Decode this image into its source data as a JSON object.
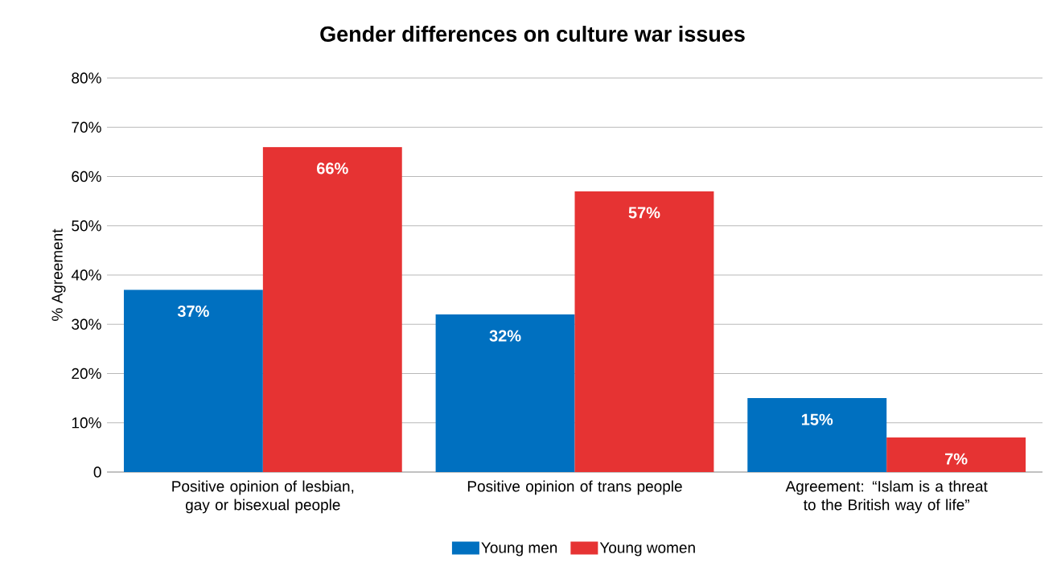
{
  "chart_data": {
    "type": "bar",
    "title": "Gender differences on culture war issues",
    "ylabel": "% Agreement",
    "categories": [
      "Positive opinion of lesbian, gay or bisexual people",
      "Positive opinion of trans people",
      "Agreement: “Islam is a threat to the British way of life”"
    ],
    "series": [
      {
        "name": "Young men",
        "color": "#0070c0",
        "values": [
          37,
          32,
          15
        ],
        "value_labels": [
          "37%",
          "32%",
          "15%"
        ]
      },
      {
        "name": "Young women",
        "color": "#e63333",
        "values": [
          66,
          57,
          7
        ],
        "value_labels": [
          "66%",
          "57%",
          "7%"
        ]
      }
    ],
    "ylim": [
      0,
      80
    ],
    "yticks": [
      0,
      {
        "value": 10,
        "label": "10%"
      },
      {
        "value": 20,
        "label": "20%"
      },
      {
        "value": 30,
        "label": "30%"
      },
      {
        "value": 40,
        "label": "40%"
      },
      {
        "value": 50,
        "label": "50%"
      },
      {
        "value": 60,
        "label": "60%"
      },
      {
        "value": 70,
        "label": "70%"
      },
      {
        "value": 80,
        "label": "80%"
      }
    ],
    "grid": "y",
    "legend": "bottom"
  }
}
